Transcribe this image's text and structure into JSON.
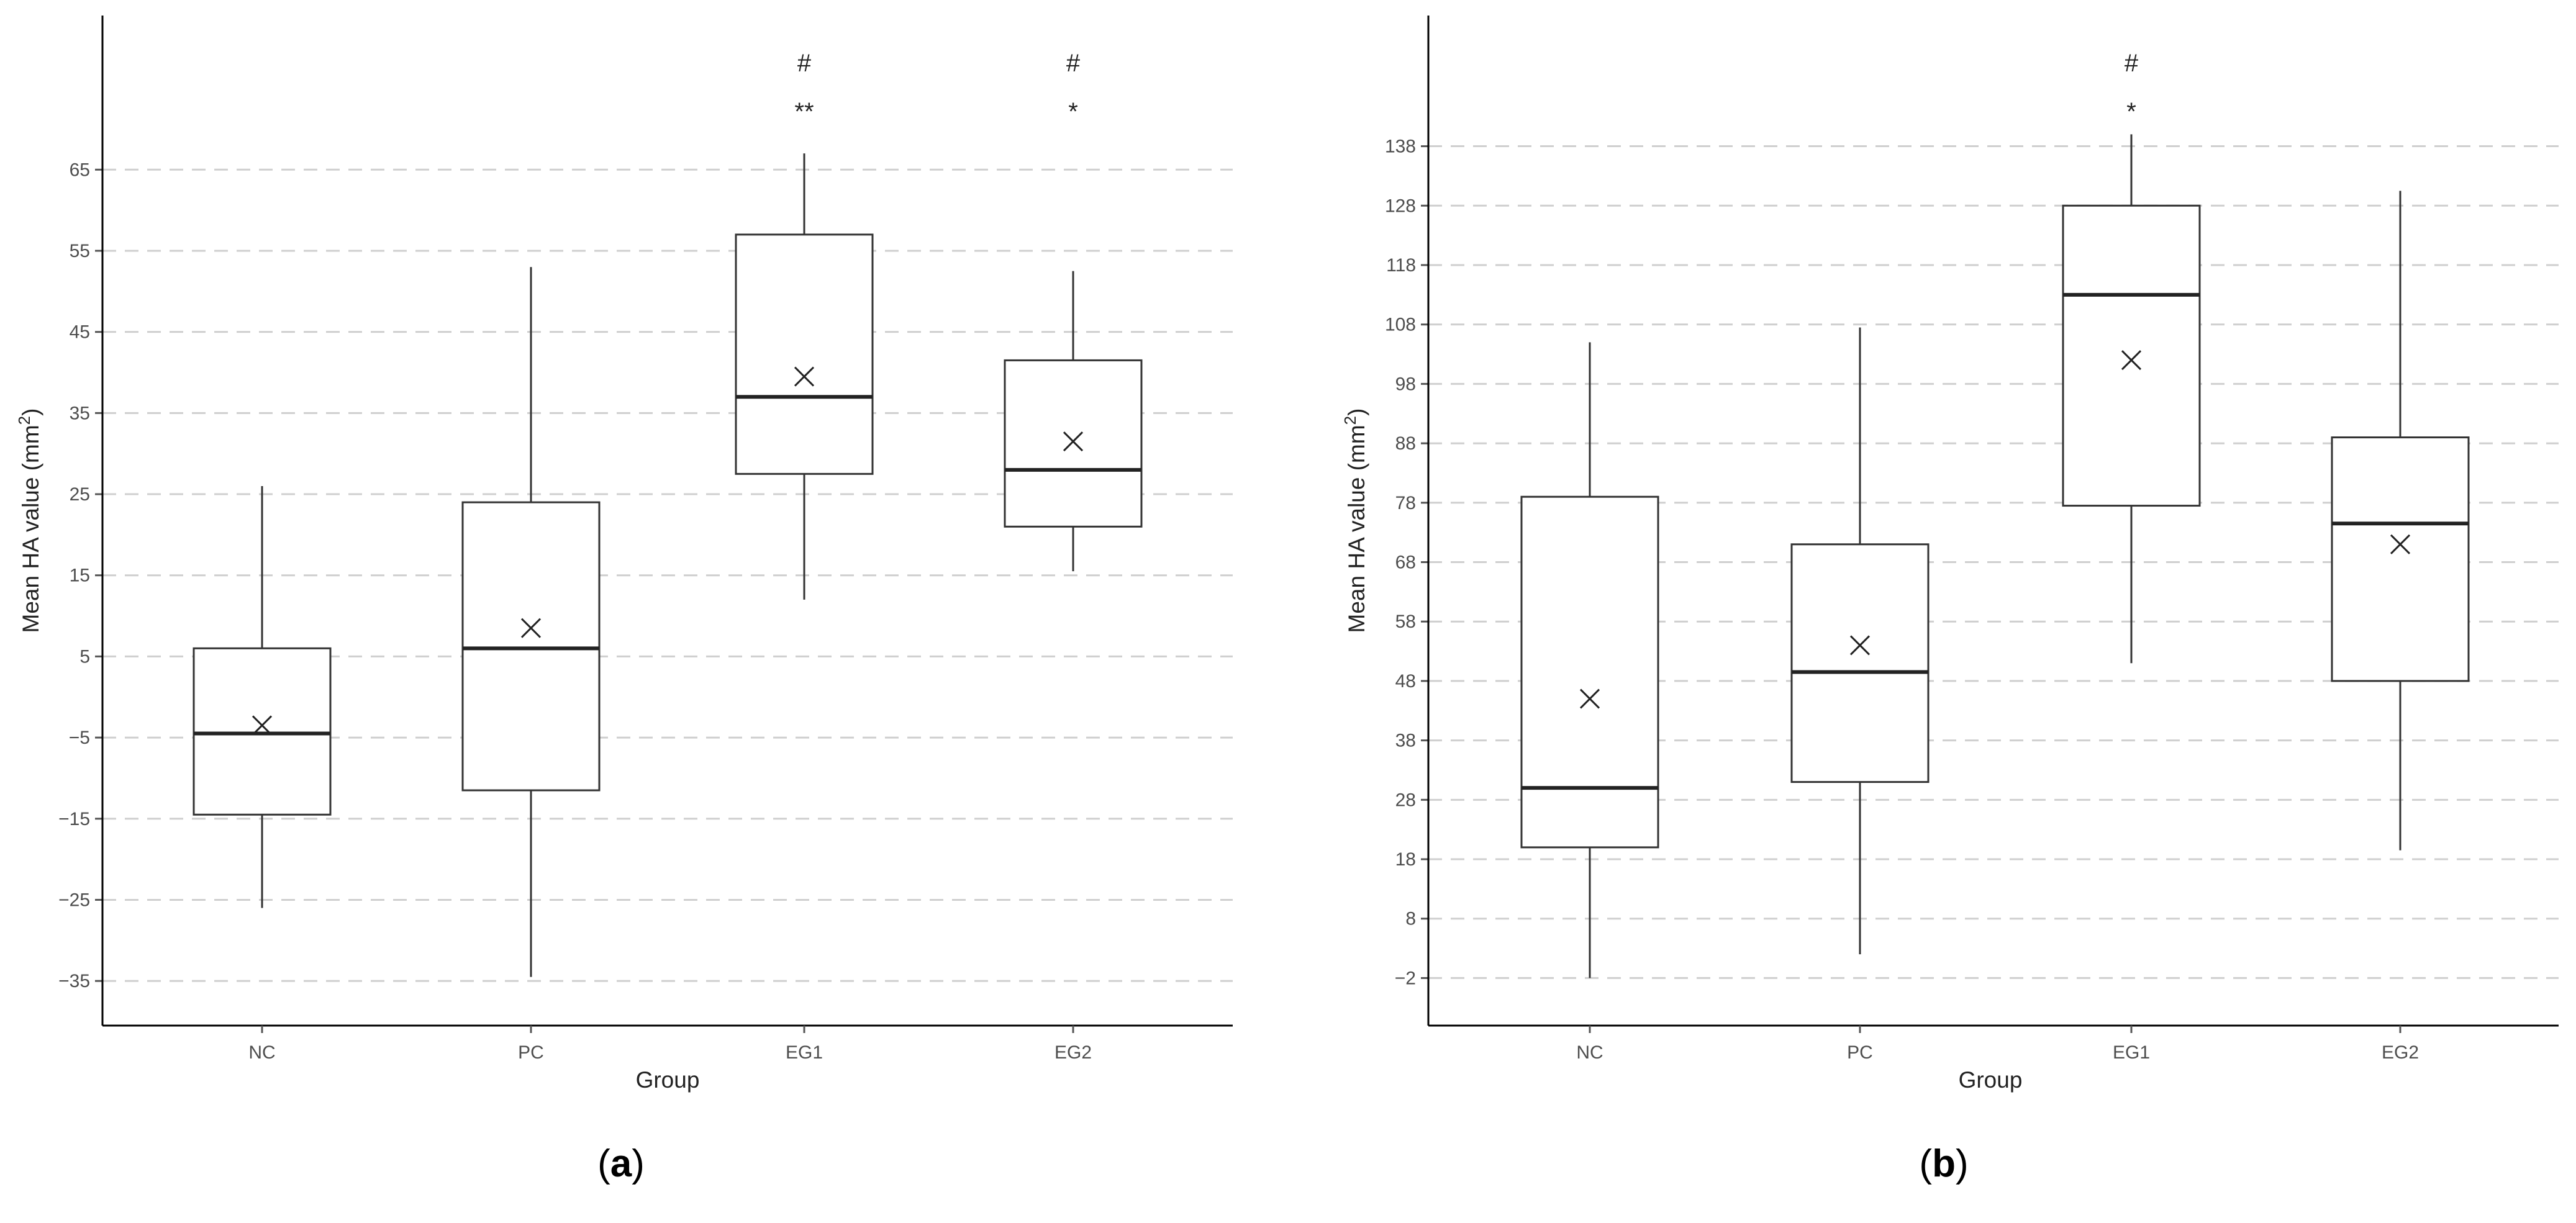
{
  "chart_data": [
    {
      "type": "box",
      "panel_label": "(a)",
      "xlabel": "Group",
      "ylabel": "Mean HA value (mm",
      "ylabel_superscript": "2",
      "ylabel_suffix": ")",
      "yticks": [
        "65",
        "55",
        "45",
        "35",
        "25",
        "15",
        "5",
        "−5",
        "−15",
        "−25",
        "−35"
      ],
      "ytick_values": [
        65,
        55,
        45,
        35,
        25,
        15,
        5,
        -5,
        -15,
        -25,
        -35
      ],
      "ylim": [
        -40.5,
        84
      ],
      "grid": "horizontal dashed",
      "categories": [
        "NC",
        "PC",
        "EG1",
        "EG2"
      ],
      "boxes": [
        {
          "group": "NC",
          "whisker_low": -26,
          "q1": -14.5,
          "median": -4.5,
          "q3": 6,
          "whisker_high": 26,
          "mean": -3.5
        },
        {
          "group": "PC",
          "whisker_low": -34.5,
          "q1": -11.5,
          "median": 6,
          "q3": 24,
          "whisker_high": 53,
          "mean": 8.5
        },
        {
          "group": "EG1",
          "whisker_low": 12,
          "q1": 27.5,
          "median": 37,
          "q3": 57,
          "whisker_high": 67,
          "mean": 39.5
        },
        {
          "group": "EG2",
          "whisker_low": 15.5,
          "q1": 21,
          "median": 28,
          "q3": 41.5,
          "whisker_high": 52.5,
          "mean": 31.5
        }
      ],
      "annotations": [
        {
          "group": "EG1",
          "labels": [
            "#",
            "**"
          ]
        },
        {
          "group": "EG2",
          "labels": [
            "#",
            "*"
          ]
        }
      ]
    },
    {
      "type": "box",
      "panel_label": "(b)",
      "xlabel": "Group",
      "ylabel": "Mean HA value (mm",
      "ylabel_superscript": "2",
      "ylabel_suffix": ")",
      "yticks": [
        "138",
        "128",
        "118",
        "108",
        "98",
        "88",
        "78",
        "68",
        "58",
        "48",
        "38",
        "28",
        "18",
        "8",
        "−2"
      ],
      "ytick_values": [
        138,
        128,
        118,
        108,
        98,
        88,
        78,
        68,
        58,
        48,
        38,
        28,
        18,
        8,
        -2
      ],
      "ylim": [
        -10,
        160
      ],
      "grid": "horizontal dashed",
      "categories": [
        "NC",
        "PC",
        "EG1",
        "EG2"
      ],
      "boxes": [
        {
          "group": "NC",
          "whisker_low": -2,
          "q1": 20,
          "median": 30,
          "q3": 79,
          "whisker_high": 105,
          "mean": 45
        },
        {
          "group": "PC",
          "whisker_low": 2,
          "q1": 31,
          "median": 49.5,
          "q3": 71,
          "whisker_high": 107.5,
          "mean": 54
        },
        {
          "group": "EG1",
          "whisker_low": 51,
          "q1": 77.5,
          "median": 113,
          "q3": 128,
          "whisker_high": 140,
          "mean": 102
        },
        {
          "group": "EG2",
          "whisker_low": 19.5,
          "q1": 48,
          "median": 74.5,
          "q3": 89,
          "whisker_high": 130.5,
          "mean": 71
        }
      ],
      "annotations": [
        {
          "group": "EG1",
          "labels": [
            "#",
            "*"
          ]
        }
      ]
    }
  ]
}
